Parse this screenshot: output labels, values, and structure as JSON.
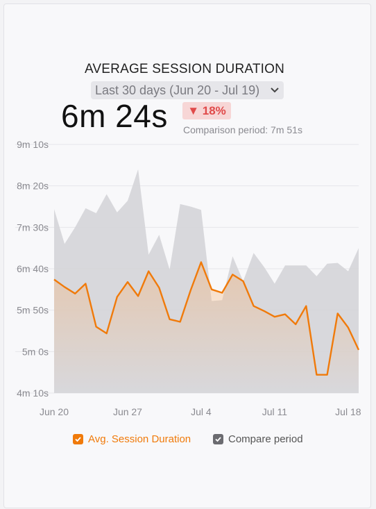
{
  "card": {
    "title": "AVERAGE SESSION DURATION",
    "date_range": "Last 30 days (Jun 20 - Jul 19)",
    "big_value": "6m 24s",
    "change": "▼ 18%",
    "comparison": "Comparison period: 7m 51s"
  },
  "legend": {
    "primary": "Avg. Session Duration",
    "compare": "Compare period"
  },
  "colors": {
    "primary": "#f07a0a",
    "compare": "#d2d2d6",
    "decrease": "#e04a4a"
  },
  "icons": {
    "dropdown": "chevron-down-icon",
    "check": "check-icon"
  },
  "chart_data": {
    "type": "area",
    "title": "AVERAGE SESSION DURATION",
    "y_unit": "seconds",
    "ylim": [
      250,
      550
    ],
    "y_ticks": [
      250,
      300,
      350,
      400,
      450,
      500,
      550
    ],
    "y_tick_labels": [
      "4m 10s",
      "5m 0s",
      "5m 50s",
      "6m 40s",
      "7m 30s",
      "8m 20s",
      "9m 10s"
    ],
    "x_ticks": [
      "Jun 20",
      "Jun 27",
      "Jul 4",
      "Jul 11",
      "Jul 18"
    ],
    "x_tick_index": [
      0,
      7,
      14,
      21,
      28
    ],
    "grid": true,
    "legend_position": "bottom",
    "series": [
      {
        "name": "Avg. Session Duration",
        "values": [
          387,
          378,
          370,
          382,
          330,
          322,
          366,
          384,
          367,
          397,
          377,
          339,
          336,
          374,
          408,
          375,
          371,
          393,
          385,
          355,
          349,
          342,
          345,
          333,
          355,
          272,
          272,
          346,
          329,
          302
        ]
      },
      {
        "name": "Compare period",
        "values": [
          472,
          430,
          450,
          473,
          467,
          490,
          468,
          482,
          520,
          417,
          441,
          399,
          478,
          475,
          471,
          361,
          362,
          415,
          385,
          419,
          402,
          382,
          404,
          404,
          404,
          391,
          406,
          407,
          397,
          425
        ]
      }
    ]
  }
}
